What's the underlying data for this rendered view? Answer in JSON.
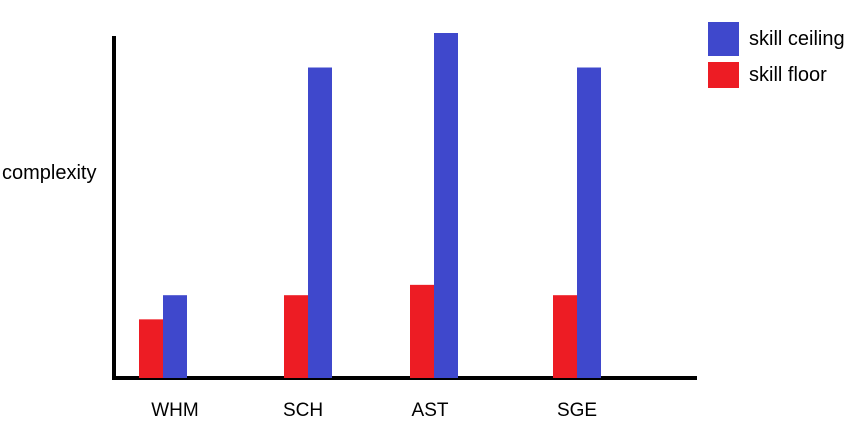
{
  "chart_data": {
    "type": "bar",
    "categories": [
      "WHM",
      "SCH",
      "AST",
      "SGE"
    ],
    "series": [
      {
        "name": "skill floor",
        "values": [
          17,
          24,
          27,
          24
        ],
        "color": "#ed1c24"
      },
      {
        "name": "skill ceiling",
        "values": [
          24,
          90,
          100,
          90
        ],
        "color": "#3f48cc"
      }
    ],
    "title": "",
    "xlabel": "",
    "ylabel": "complexity",
    "ylim": [
      0,
      100
    ],
    "grid": false,
    "legend_position": "top-right"
  }
}
